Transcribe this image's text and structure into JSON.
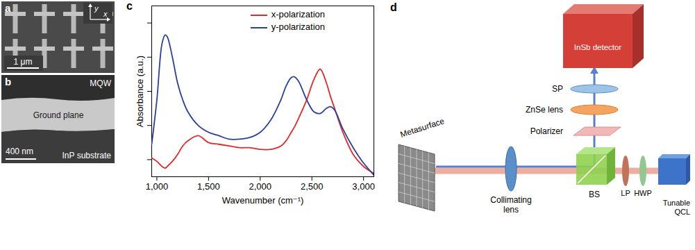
{
  "panel_letters": [
    "a",
    "b",
    "c",
    "d"
  ],
  "panel_a": {
    "scale_bar": "1 μm",
    "x_axis": "x",
    "y_axis": "y"
  },
  "panel_b": {
    "layers": [
      "MQW",
      "Ground plane",
      "InP substrate"
    ],
    "scale_bar": "400 nm"
  },
  "chart_data": {
    "type": "line",
    "x_label": "Wavenumber (cm⁻¹)",
    "y_label": "Absorbance (a.u.)",
    "x": [
      950,
      1000,
      1050,
      1080,
      1100,
      1150,
      1200,
      1250,
      1300,
      1400,
      1500,
      1600,
      1700,
      1800,
      1900,
      2000,
      2100,
      2200,
      2250,
      2300,
      2330,
      2370,
      2450,
      2520,
      2580,
      2640,
      2680,
      2720,
      2800,
      2900,
      3000,
      3100
    ],
    "series": [
      {
        "name": "x-polarization",
        "color": "#e8262a",
        "values": [
          0.11,
          0.09,
          0.06,
          0.05,
          0.06,
          0.09,
          0.13,
          0.18,
          0.21,
          0.24,
          0.2,
          0.19,
          0.18,
          0.17,
          0.17,
          0.16,
          0.16,
          0.18,
          0.21,
          0.26,
          0.29,
          0.34,
          0.45,
          0.57,
          0.63,
          0.55,
          0.47,
          0.4,
          0.26,
          0.13,
          0.06,
          0.02
        ]
      },
      {
        "name": "y-polarization",
        "color": "#2a3f9c",
        "values": [
          0.19,
          0.45,
          0.78,
          0.83,
          0.82,
          0.7,
          0.55,
          0.45,
          0.38,
          0.3,
          0.26,
          0.24,
          0.22,
          0.22,
          0.23,
          0.26,
          0.33,
          0.45,
          0.53,
          0.58,
          0.585,
          0.56,
          0.45,
          0.38,
          0.37,
          0.4,
          0.41,
          0.39,
          0.28,
          0.17,
          0.08,
          0.01
        ]
      }
    ],
    "xlim": [
      950,
      3100
    ],
    "xticks": [
      {
        "value": 1000,
        "label": "1,000"
      },
      {
        "value": 1500,
        "label": "1,500"
      },
      {
        "value": 2000,
        "label": "2,000"
      },
      {
        "value": 2500,
        "label": "2,500"
      },
      {
        "value": 3000,
        "label": "3,000"
      }
    ],
    "ylim": [
      0,
      1
    ],
    "yticks": [
      0.1,
      0.3,
      0.5,
      0.7,
      0.9
    ],
    "tick_labels": "x",
    "legend": "top-right"
  },
  "panel_d": {
    "detector": "InSb detector",
    "short_pass": "SP",
    "lens": "ZnSe lens",
    "polarizer": "Polarizer",
    "sample": "Metasurface",
    "collimator": "Collimating lens",
    "beam_splitter": "BS",
    "linear_polarizer": "LP",
    "half_wave_plate": "HWP",
    "laser": "Tunable QCL"
  }
}
